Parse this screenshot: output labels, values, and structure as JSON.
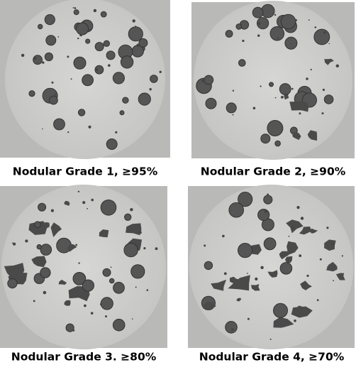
{
  "panels": [
    {
      "caption": "Nodular Grade 1, ≥95%"
    },
    {
      "caption": "Nodular Grade 2, ≥90%"
    },
    {
      "caption": "Nodular Grade 3. ≥80%"
    },
    {
      "caption": "Nodular Grade 4, ≥70%"
    }
  ]
}
